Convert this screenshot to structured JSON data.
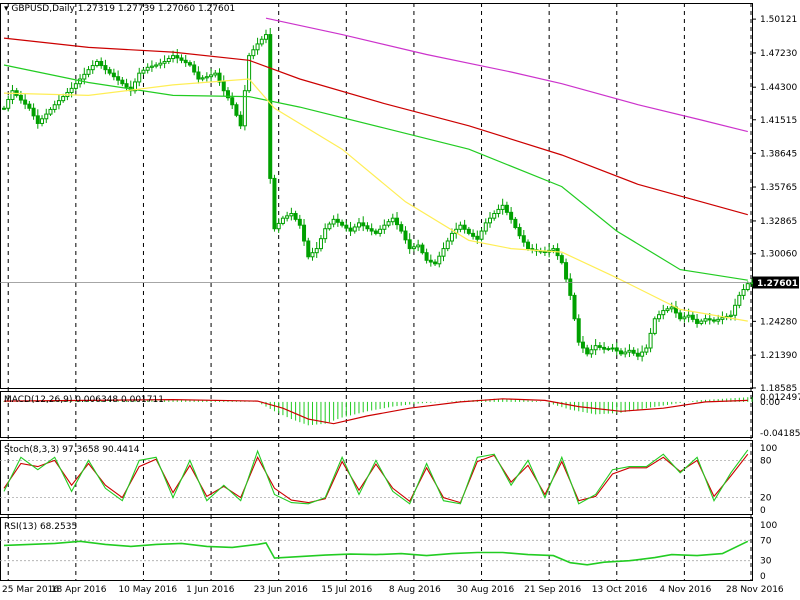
{
  "main_pane": {
    "symbol_label": "GBPUSD,Daily",
    "ohlc_label": "1.27319 1.27739 1.27060 1.27601",
    "current_price_label": "1.27601"
  },
  "macd_pane": {
    "label": "MACD(12,26,9) 0.006348 0.001711",
    "axis_labels": [
      "0.012497",
      "0.00",
      "-0.041857"
    ]
  },
  "stoch_pane": {
    "label": "Stoch(8,3,3) 97.3658 90.4414",
    "axis_labels": [
      "100",
      "80",
      "20",
      "0"
    ]
  },
  "rsi_pane": {
    "label": "RSI(13) 68.2535",
    "axis_labels": [
      "100",
      "70",
      "30",
      "0"
    ]
  },
  "colors": {
    "candle": "#00a000",
    "ma_magenta": "#cc33cc",
    "ma_red": "#cc0000",
    "ma_green": "#22cc22",
    "ma_yellow": "#ffee55",
    "macd_hist": "#22cc22",
    "macd_signal": "#cc0000",
    "stoch_main": "#22cc22",
    "stoch_signal": "#cc0000",
    "rsi_line": "#22cc22",
    "price_tag_bg": "#000000"
  },
  "chart_data": {
    "type": "candlestick",
    "symbol": "GBPUSD",
    "timeframe": "Daily",
    "price_axis_labels": [
      "1.50121",
      "1.47230",
      "1.44300",
      "1.41515",
      "1.38645",
      "1.35765",
      "1.32865",
      "1.30060",
      "1.27601",
      "1.24280",
      "1.21390",
      "1.18585"
    ],
    "ylim": [
      1.1858,
      1.515
    ],
    "date_labels": [
      "25 Mar 2016",
      "18 Apr 2016",
      "10 May 2016",
      "1 Jun 2016",
      "23 Jun 2016",
      "15 Jul 2016",
      "8 Aug 2016",
      "30 Aug 2016",
      "21 Sep 2016",
      "13 Oct 2016",
      "4 Nov 2016",
      "28 Nov 2016"
    ],
    "close_path": [
      [
        0,
        1.425
      ],
      [
        2,
        1.44
      ],
      [
        4,
        1.432
      ],
      [
        6,
        1.425
      ],
      [
        8,
        1.412
      ],
      [
        10,
        1.42
      ],
      [
        12,
        1.428
      ],
      [
        14,
        1.435
      ],
      [
        16,
        1.442
      ],
      [
        18,
        1.45
      ],
      [
        20,
        1.458
      ],
      [
        22,
        1.465
      ],
      [
        24,
        1.458
      ],
      [
        26,
        1.452
      ],
      [
        28,
        1.446
      ],
      [
        30,
        1.44
      ],
      [
        32,
        1.455
      ],
      [
        34,
        1.46
      ],
      [
        36,
        1.462
      ],
      [
        38,
        1.465
      ],
      [
        40,
        1.47
      ],
      [
        42,
        1.466
      ],
      [
        44,
        1.462
      ],
      [
        46,
        1.45
      ],
      [
        48,
        1.452
      ],
      [
        50,
        1.455
      ],
      [
        52,
        1.44
      ],
      [
        54,
        1.428
      ],
      [
        56,
        1.41
      ],
      [
        58,
        1.47
      ],
      [
        60,
        1.48
      ],
      [
        62,
        1.488
      ],
      [
        63,
        1.365
      ],
      [
        64,
        1.322
      ],
      [
        66,
        1.331
      ],
      [
        68,
        1.335
      ],
      [
        70,
        1.325
      ],
      [
        72,
        1.298
      ],
      [
        74,
        1.305
      ],
      [
        76,
        1.322
      ],
      [
        78,
        1.33
      ],
      [
        80,
        1.325
      ],
      [
        82,
        1.32
      ],
      [
        84,
        1.327
      ],
      [
        86,
        1.322
      ],
      [
        88,
        1.318
      ],
      [
        90,
        1.325
      ],
      [
        92,
        1.331
      ],
      [
        94,
        1.32
      ],
      [
        96,
        1.305
      ],
      [
        98,
        1.308
      ],
      [
        100,
        1.295
      ],
      [
        102,
        1.292
      ],
      [
        104,
        1.305
      ],
      [
        106,
        1.318
      ],
      [
        108,
        1.325
      ],
      [
        110,
        1.318
      ],
      [
        112,
        1.313
      ],
      [
        114,
        1.327
      ],
      [
        116,
        1.335
      ],
      [
        118,
        1.342
      ],
      [
        120,
        1.33
      ],
      [
        122,
        1.316
      ],
      [
        124,
        1.305
      ],
      [
        126,
        1.303
      ],
      [
        128,
        1.302
      ],
      [
        130,
        1.305
      ],
      [
        132,
        1.293
      ],
      [
        134,
        1.265
      ],
      [
        136,
        1.225
      ],
      [
        138,
        1.215
      ],
      [
        140,
        1.222
      ],
      [
        142,
        1.219
      ],
      [
        144,
        1.22
      ],
      [
        146,
        1.215
      ],
      [
        148,
        1.218
      ],
      [
        150,
        1.213
      ],
      [
        152,
        1.22
      ],
      [
        154,
        1.245
      ],
      [
        156,
        1.252
      ],
      [
        158,
        1.255
      ],
      [
        160,
        1.245
      ],
      [
        162,
        1.248
      ],
      [
        164,
        1.241
      ],
      [
        166,
        1.245
      ],
      [
        168,
        1.243
      ],
      [
        170,
        1.246
      ],
      [
        172,
        1.248
      ],
      [
        174,
        1.265
      ],
      [
        176,
        1.275
      ],
      [
        177,
        1.276
      ]
    ],
    "moving_averages": [
      {
        "color_key": "ma_magenta",
        "points": [
          [
            62,
            1.502
          ],
          [
            80,
            1.488
          ],
          [
            100,
            1.471
          ],
          [
            120,
            1.456
          ],
          [
            132,
            1.446
          ],
          [
            150,
            1.428
          ],
          [
            165,
            1.415
          ],
          [
            176,
            1.405
          ]
        ]
      },
      {
        "color_key": "ma_red",
        "points": [
          [
            0,
            1.485
          ],
          [
            20,
            1.477
          ],
          [
            40,
            1.473
          ],
          [
            58,
            1.466
          ],
          [
            70,
            1.45
          ],
          [
            90,
            1.429
          ],
          [
            110,
            1.41
          ],
          [
            132,
            1.385
          ],
          [
            150,
            1.36
          ],
          [
            165,
            1.345
          ],
          [
            176,
            1.334
          ]
        ]
      },
      {
        "color_key": "ma_green",
        "points": [
          [
            0,
            1.462
          ],
          [
            20,
            1.447
          ],
          [
            40,
            1.436
          ],
          [
            58,
            1.435
          ],
          [
            70,
            1.426
          ],
          [
            90,
            1.408
          ],
          [
            110,
            1.39
          ],
          [
            132,
            1.358
          ],
          [
            145,
            1.32
          ],
          [
            160,
            1.287
          ],
          [
            176,
            1.278
          ]
        ]
      },
      {
        "color_key": "ma_yellow",
        "points": [
          [
            0,
            1.438
          ],
          [
            20,
            1.436
          ],
          [
            40,
            1.445
          ],
          [
            58,
            1.45
          ],
          [
            64,
            1.425
          ],
          [
            80,
            1.39
          ],
          [
            95,
            1.345
          ],
          [
            110,
            1.312
          ],
          [
            120,
            1.305
          ],
          [
            132,
            1.302
          ],
          [
            145,
            1.28
          ],
          [
            160,
            1.253
          ],
          [
            176,
            1.243
          ]
        ]
      }
    ],
    "macd": {
      "ylim": [
        -0.045,
        0.014
      ],
      "histogram": [
        [
          0,
          0.001
        ],
        [
          10,
          0.0015
        ],
        [
          20,
          0.002
        ],
        [
          30,
          0.002
        ],
        [
          40,
          0.003
        ],
        [
          50,
          0.002
        ],
        [
          60,
          0.0
        ],
        [
          64,
          -0.012
        ],
        [
          68,
          -0.022
        ],
        [
          72,
          -0.03
        ],
        [
          76,
          -0.028
        ],
        [
          80,
          -0.02
        ],
        [
          86,
          -0.012
        ],
        [
          92,
          -0.006
        ],
        [
          98,
          -0.002
        ],
        [
          104,
          0.0
        ],
        [
          110,
          0.002
        ],
        [
          116,
          0.004
        ],
        [
          122,
          0.003
        ],
        [
          128,
          0.0
        ],
        [
          134,
          -0.01
        ],
        [
          140,
          -0.016
        ],
        [
          146,
          -0.014
        ],
        [
          152,
          -0.008
        ],
        [
          158,
          -0.003
        ],
        [
          164,
          0.002
        ],
        [
          170,
          0.004
        ],
        [
          176,
          0.006
        ]
      ],
      "signal": [
        [
          0,
          0.001
        ],
        [
          20,
          0.002
        ],
        [
          40,
          0.003
        ],
        [
          60,
          0.001
        ],
        [
          66,
          -0.008
        ],
        [
          72,
          -0.022
        ],
        [
          78,
          -0.028
        ],
        [
          86,
          -0.018
        ],
        [
          96,
          -0.008
        ],
        [
          108,
          0.0
        ],
        [
          118,
          0.004
        ],
        [
          128,
          0.002
        ],
        [
          136,
          -0.006
        ],
        [
          146,
          -0.012
        ],
        [
          156,
          -0.008
        ],
        [
          166,
          0.0
        ],
        [
          176,
          0.002
        ]
      ]
    },
    "stochastic": {
      "ylim": [
        0,
        100
      ],
      "main": [
        [
          0,
          30
        ],
        [
          4,
          85
        ],
        [
          8,
          65
        ],
        [
          12,
          85
        ],
        [
          16,
          30
        ],
        [
          20,
          80
        ],
        [
          24,
          35
        ],
        [
          28,
          15
        ],
        [
          32,
          80
        ],
        [
          36,
          85
        ],
        [
          40,
          20
        ],
        [
          44,
          80
        ],
        [
          48,
          15
        ],
        [
          52,
          40
        ],
        [
          56,
          15
        ],
        [
          60,
          95
        ],
        [
          64,
          25
        ],
        [
          68,
          12
        ],
        [
          72,
          10
        ],
        [
          76,
          20
        ],
        [
          80,
          85
        ],
        [
          84,
          25
        ],
        [
          88,
          80
        ],
        [
          92,
          30
        ],
        [
          96,
          10
        ],
        [
          100,
          75
        ],
        [
          104,
          15
        ],
        [
          108,
          10
        ],
        [
          112,
          85
        ],
        [
          116,
          90
        ],
        [
          120,
          40
        ],
        [
          124,
          80
        ],
        [
          128,
          20
        ],
        [
          132,
          85
        ],
        [
          136,
          10
        ],
        [
          140,
          25
        ],
        [
          144,
          65
        ],
        [
          148,
          70
        ],
        [
          152,
          70
        ],
        [
          156,
          90
        ],
        [
          160,
          60
        ],
        [
          164,
          85
        ],
        [
          168,
          15
        ],
        [
          172,
          60
        ],
        [
          176,
          97
        ]
      ],
      "signal": [
        [
          0,
          35
        ],
        [
          4,
          75
        ],
        [
          8,
          70
        ],
        [
          12,
          80
        ],
        [
          16,
          40
        ],
        [
          20,
          75
        ],
        [
          24,
          40
        ],
        [
          28,
          20
        ],
        [
          32,
          70
        ],
        [
          36,
          82
        ],
        [
          40,
          28
        ],
        [
          44,
          72
        ],
        [
          48,
          22
        ],
        [
          52,
          38
        ],
        [
          56,
          20
        ],
        [
          60,
          85
        ],
        [
          64,
          35
        ],
        [
          68,
          16
        ],
        [
          72,
          12
        ],
        [
          76,
          18
        ],
        [
          80,
          78
        ],
        [
          84,
          32
        ],
        [
          88,
          74
        ],
        [
          92,
          35
        ],
        [
          96,
          14
        ],
        [
          100,
          68
        ],
        [
          104,
          20
        ],
        [
          108,
          12
        ],
        [
          112,
          78
        ],
        [
          116,
          88
        ],
        [
          120,
          45
        ],
        [
          124,
          72
        ],
        [
          128,
          25
        ],
        [
          132,
          78
        ],
        [
          136,
          15
        ],
        [
          140,
          22
        ],
        [
          144,
          58
        ],
        [
          148,
          68
        ],
        [
          152,
          68
        ],
        [
          156,
          85
        ],
        [
          160,
          62
        ],
        [
          164,
          80
        ],
        [
          168,
          22
        ],
        [
          172,
          55
        ],
        [
          176,
          90
        ]
      ]
    },
    "rsi": {
      "ylim": [
        0,
        100
      ],
      "values": [
        [
          0,
          60
        ],
        [
          6,
          62
        ],
        [
          12,
          64
        ],
        [
          18,
          68
        ],
        [
          24,
          62
        ],
        [
          30,
          58
        ],
        [
          36,
          62
        ],
        [
          42,
          64
        ],
        [
          48,
          58
        ],
        [
          54,
          56
        ],
        [
          60,
          62
        ],
        [
          62,
          65
        ],
        [
          64,
          35
        ],
        [
          70,
          38
        ],
        [
          76,
          41
        ],
        [
          82,
          43
        ],
        [
          88,
          42
        ],
        [
          94,
          44
        ],
        [
          100,
          40
        ],
        [
          106,
          44
        ],
        [
          112,
          46
        ],
        [
          118,
          46
        ],
        [
          124,
          42
        ],
        [
          130,
          40
        ],
        [
          134,
          26
        ],
        [
          138,
          22
        ],
        [
          142,
          27
        ],
        [
          148,
          30
        ],
        [
          154,
          36
        ],
        [
          158,
          42
        ],
        [
          164,
          40
        ],
        [
          170,
          44
        ],
        [
          176,
          68
        ]
      ]
    }
  }
}
